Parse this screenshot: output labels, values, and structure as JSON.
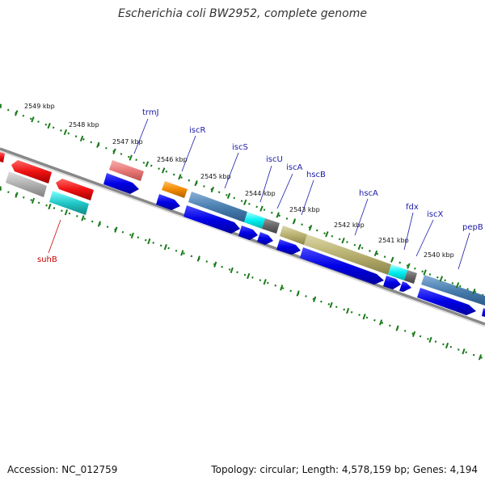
{
  "title": "Escherichia coli BW2952, complete genome",
  "accession": "Accession: NC_012759",
  "stats": "Topology: circular; Length: 4,578,159 bp; Genes: 4,194",
  "kbp_labels": [
    "2549 kbp",
    "2548 kbp",
    "2547 kbp",
    "2546 kbp",
    "2545 kbp",
    "2544 kbp",
    "2543 kbp",
    "2542 kbp",
    "2541 kbp",
    "2540 kbp"
  ],
  "genes": [
    {
      "name": "trmJ",
      "color": "#1a1aaa"
    },
    {
      "name": "iscR",
      "color": "#1a1aaa"
    },
    {
      "name": "iscS",
      "color": "#1a1aaa"
    },
    {
      "name": "iscU",
      "color": "#1a1aaa"
    },
    {
      "name": "iscA",
      "color": "#1a1aaa"
    },
    {
      "name": "hscB",
      "color": "#1a1aaa"
    },
    {
      "name": "hscA",
      "color": "#1a1aaa"
    },
    {
      "name": "fdx",
      "color": "#1a1aaa"
    },
    {
      "name": "iscX",
      "color": "#1a1aaa"
    },
    {
      "name": "pepB",
      "color": "#1a1aaa"
    },
    {
      "name": "suhB",
      "color": "#d00000"
    }
  ],
  "colors": {
    "cds_blue": "#0000e6",
    "red": "#ee1111",
    "pink": "#e87878",
    "gray": "#b0b0b0",
    "cyan": "#22c8c8",
    "orange": "#f08a00",
    "steelblue": "#4a7fb0",
    "olive": "#b8b070",
    "darkgray": "#666666",
    "tick_green": "#1a7a1a"
  }
}
